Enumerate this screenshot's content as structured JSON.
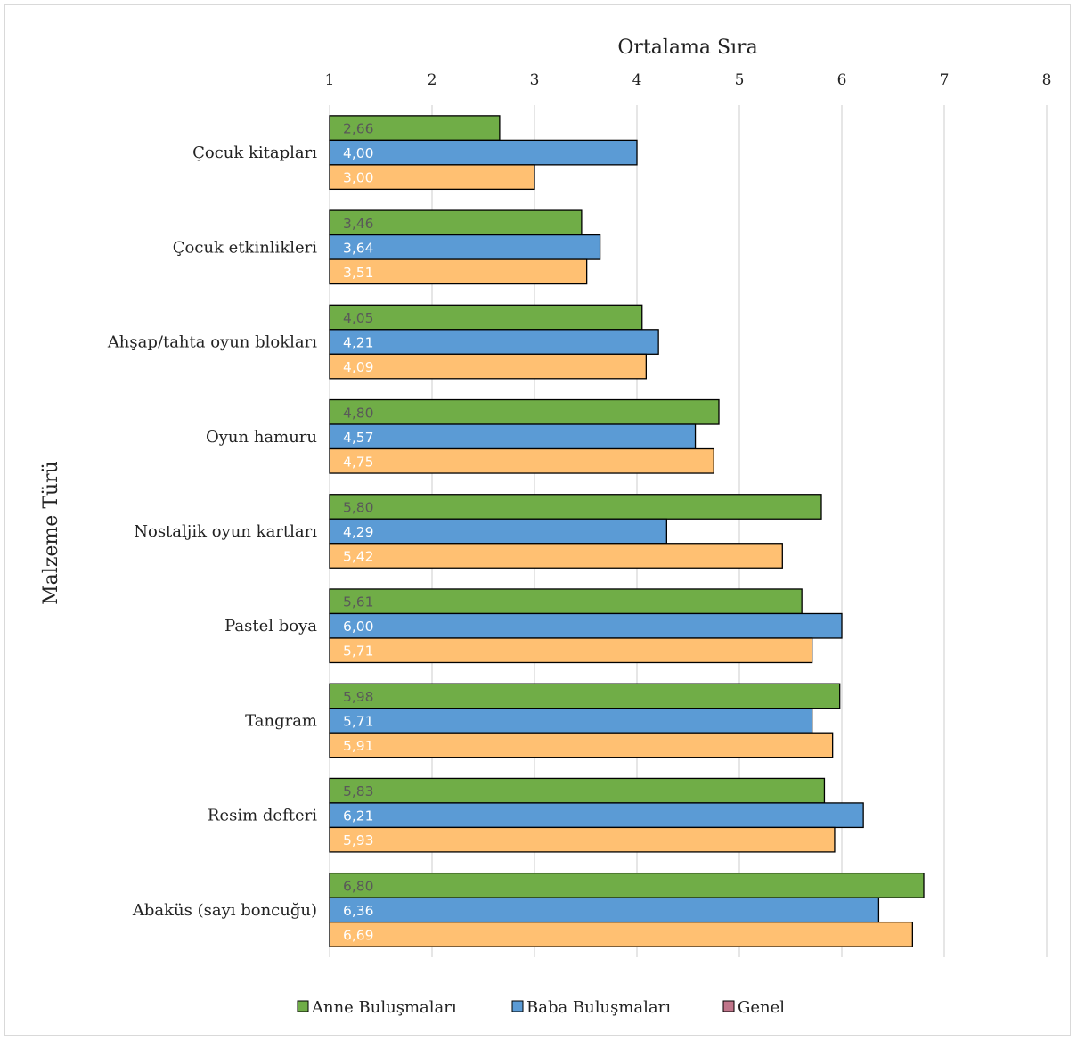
{
  "chart_data": {
    "type": "bar",
    "orientation": "horizontal",
    "title": "",
    "xlabel": "Ortalama Sıra",
    "ylabel": "Malzeme Türü",
    "xlim": [
      1,
      8
    ],
    "xticks": [
      "1",
      "2",
      "3",
      "4",
      "5",
      "6",
      "7",
      "8"
    ],
    "grid": true,
    "legend_position": "bottom",
    "categories": [
      "Çocuk kitapları",
      "Çocuk etkinlikleri",
      "Ahşap/tahta oyun blokları",
      "Oyun hamuru",
      "Nostaljik oyun kartları",
      "Pastel boya",
      "Tangram",
      "Resim defteri",
      "Abaküs (sayı boncuğu)"
    ],
    "series": [
      {
        "name": "Anne Buluşmaları",
        "color": "#70ad47",
        "label_color": "#595959",
        "values": [
          2.66,
          3.46,
          4.05,
          4.8,
          5.8,
          5.61,
          5.98,
          5.83,
          6.8
        ],
        "labels": [
          "2,66",
          "3,46",
          "4,05",
          "4,80",
          "5,80",
          "5,61",
          "5,98",
          "5,83",
          "6,80"
        ]
      },
      {
        "name": "Baba Buluşmaları",
        "color": "#5b9bd5",
        "label_color": "#ffffff",
        "values": [
          4.0,
          3.64,
          4.21,
          4.57,
          4.29,
          6.0,
          5.71,
          6.21,
          6.36
        ],
        "labels": [
          "4,00",
          "3,64",
          "4,21",
          "4,57",
          "4,29",
          "6,00",
          "5,71",
          "6,21",
          "6,36"
        ]
      },
      {
        "name": "",
        "color": "#ffc072",
        "label_color": "#ffffff",
        "values": [
          3.0,
          3.51,
          4.09,
          4.75,
          5.42,
          5.71,
          5.91,
          5.93,
          6.69
        ],
        "labels": [
          "3,00",
          "3,51",
          "4,09",
          "4,75",
          "5,42",
          "5,71",
          "5,91",
          "5,93",
          "6,69"
        ]
      }
    ],
    "legend": [
      {
        "label": "Anne Buluşmaları",
        "color": "#70ad47"
      },
      {
        "label": "Baba Buluşmaları",
        "color": "#5b9bd5"
      },
      {
        "label": "Genel",
        "color": "#c0758a"
      }
    ]
  }
}
